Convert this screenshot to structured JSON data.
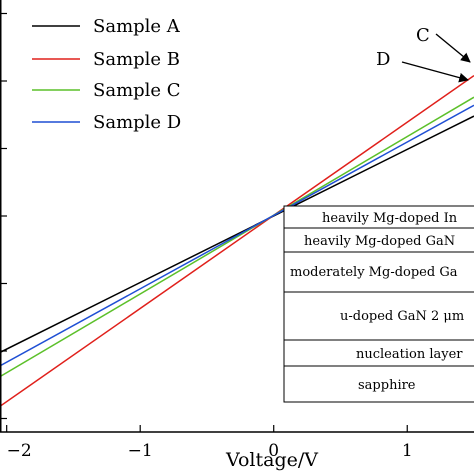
{
  "chart_data": {
    "type": "line",
    "xlabel": "Voltage/V",
    "ylabel": "",
    "xlim": [
      -2.05,
      1.5
    ],
    "ylim": [
      -1.6,
      1.6
    ],
    "x_ticks": [
      -2,
      -1,
      0,
      1
    ],
    "x_tick_labels": [
      "−2",
      "−1",
      "0",
      "1"
    ],
    "y_ticks": [
      -1.5,
      -1.0,
      -0.5,
      0.0,
      0.5,
      1.0,
      1.5
    ],
    "legend_position": "top-left",
    "series": [
      {
        "name": "Sample A",
        "color": "#000000",
        "x": [
          -2.05,
          1.5
        ],
        "y": [
          -1.01,
          0.74
        ]
      },
      {
        "name": "Sample B",
        "color": "#e0201b",
        "x": [
          -2.05,
          1.5
        ],
        "y": [
          -1.41,
          1.04
        ]
      },
      {
        "name": "Sample C",
        "color": "#5cc02a",
        "x": [
          -2.05,
          1.5
        ],
        "y": [
          -1.19,
          0.88
        ]
      },
      {
        "name": "Sample D",
        "color": "#1f4fd4",
        "x": [
          -2.05,
          1.5
        ],
        "y": [
          -1.11,
          0.82
        ]
      }
    ],
    "annotations": [
      {
        "text": "C",
        "target_series": "Sample C"
      },
      {
        "text": "D",
        "target_series": "Sample D"
      }
    ],
    "inset_layer_stack": [
      "heavily Mg-doped In",
      "heavily Mg-doped GaN",
      "moderately Mg-doped Ga",
      "u-doped GaN 2 μm",
      "nucleation layer",
      "sapphire"
    ]
  }
}
